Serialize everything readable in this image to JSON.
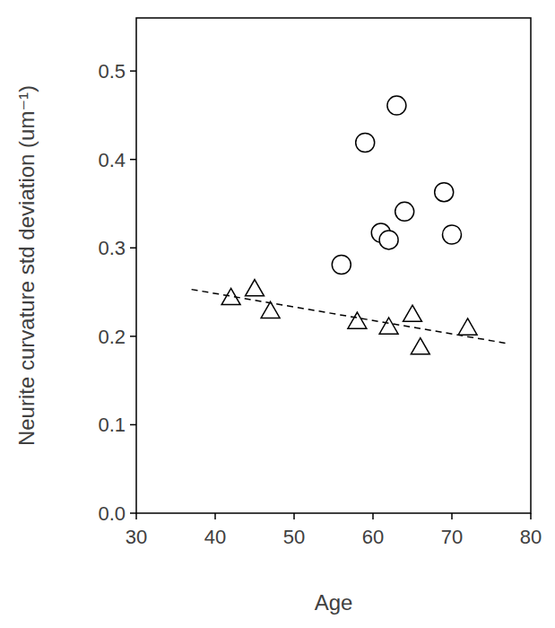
{
  "chart_data": {
    "type": "scatter",
    "xlabel": "Age",
    "ylabel": "Neurite curvature std deviation (um⁻¹)",
    "xlim": [
      30,
      80
    ],
    "xticks": [
      30,
      40,
      50,
      60,
      70,
      80
    ],
    "ylim": [
      0,
      0.56
    ],
    "yticks": [
      {
        "value": 0,
        "label": "0.0"
      },
      0.1,
      0.2,
      0.3,
      0.4,
      0.5
    ],
    "grid": false,
    "series": [
      {
        "type": "scatter",
        "marker": "circle",
        "color": "#000000",
        "x": [
          56,
          59,
          61,
          62,
          63,
          64,
          69,
          70
        ],
        "values": [
          0.281,
          0.419,
          0.317,
          0.309,
          0.461,
          0.341,
          0.363,
          0.315
        ]
      },
      {
        "type": "scatter",
        "marker": "triangle",
        "color": "#000000",
        "x": [
          42,
          45,
          47,
          58,
          62,
          65,
          66,
          72
        ],
        "values": [
          0.243,
          0.253,
          0.228,
          0.216,
          0.21,
          0.224,
          0.187,
          0.209
        ]
      },
      {
        "type": "line",
        "line_style": "dashed",
        "color": "#000000",
        "x": [
          37,
          77
        ],
        "values": [
          0.253,
          0.192
        ]
      }
    ]
  }
}
